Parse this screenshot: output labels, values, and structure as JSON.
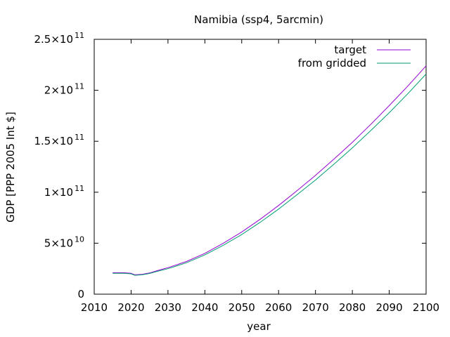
{
  "chart_data": {
    "type": "line",
    "title": "Namibia (ssp4, 5arcmin)",
    "xlabel": "year",
    "ylabel": "GDP [PPP 2005 Int $]",
    "xlim": [
      2010,
      2100
    ],
    "ylim": [
      0,
      250000000000
    ],
    "x_ticks": [
      2010,
      2020,
      2030,
      2040,
      2050,
      2060,
      2070,
      2080,
      2090,
      2100
    ],
    "x_tick_labels": [
      "2010",
      "2020",
      "2030",
      "2040",
      "2050",
      "2060",
      "2070",
      "2080",
      "2090",
      "2100"
    ],
    "y_ticks": [
      0,
      50000000000,
      100000000000,
      150000000000,
      200000000000,
      250000000000
    ],
    "y_tick_labels": [
      {
        "text": "0",
        "base": "",
        "exp": ""
      },
      {
        "text": "",
        "base": "5×10",
        "exp": "10"
      },
      {
        "text": "",
        "base": "1×10",
        "exp": "11"
      },
      {
        "text": "",
        "base": "1.5×10",
        "exp": "11"
      },
      {
        "text": "",
        "base": "2×10",
        "exp": "11"
      },
      {
        "text": "",
        "base": "2.5×10",
        "exp": "11"
      }
    ],
    "grid": false,
    "legend_position": "top-right",
    "x": [
      2015,
      2018,
      2020,
      2021,
      2023,
      2025,
      2027,
      2030,
      2035,
      2040,
      2045,
      2050,
      2055,
      2060,
      2065,
      2070,
      2075,
      2080,
      2085,
      2090,
      2095,
      2100
    ],
    "series": [
      {
        "name": "target",
        "color": "#9400d3",
        "values": [
          21000000000,
          21000000000,
          20500000000,
          19000000000,
          19500000000,
          20800000000,
          23000000000,
          26000000000,
          32000000000,
          40000000000,
          50000000000,
          61000000000,
          73500000000,
          87000000000,
          101500000000,
          116500000000,
          132500000000,
          149000000000,
          166500000000,
          185000000000,
          204000000000,
          224000000000
        ]
      },
      {
        "name": "from gridded",
        "color": "#009e73",
        "values": [
          20500000000,
          20500000000,
          20000000000,
          18500000000,
          19000000000,
          20300000000,
          22300000000,
          25000000000,
          30800000000,
          38500000000,
          48000000000,
          58500000000,
          70500000000,
          83500000000,
          97500000000,
          112000000000,
          127500000000,
          143500000000,
          160500000000,
          178000000000,
          196500000000,
          216000000000
        ]
      }
    ]
  }
}
